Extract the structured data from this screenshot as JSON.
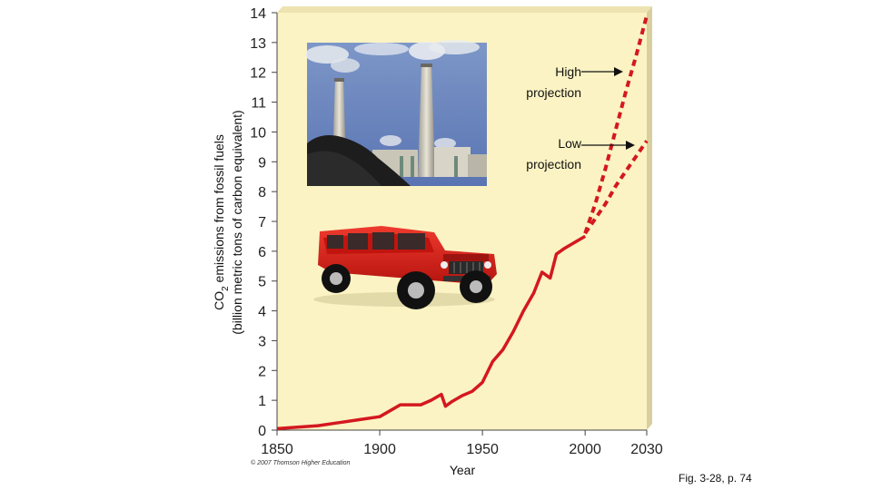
{
  "chart_data": {
    "type": "line",
    "ylabel_line1_prefix": "CO",
    "ylabel_line1_sub": "2",
    "ylabel_line1_suffix": " emissions from fossil fuels",
    "ylabel_line2": "(billion metric tons of carbon equivalent)",
    "xlabel": "Year",
    "xlim": [
      1850,
      2030
    ],
    "ylim": [
      0,
      14
    ],
    "x_ticks": [
      1850,
      1900,
      1950,
      2000,
      2030
    ],
    "y_ticks": [
      0,
      1,
      2,
      3,
      4,
      5,
      6,
      7,
      8,
      9,
      10,
      11,
      12,
      13,
      14
    ],
    "series": [
      {
        "kind": "observed",
        "style": "solid",
        "x": [
          1850,
          1860,
          1870,
          1880,
          1890,
          1900,
          1910,
          1920,
          1925,
          1930,
          1932,
          1935,
          1940,
          1945,
          1950,
          1955,
          1960,
          1965,
          1970,
          1975,
          1979,
          1983,
          1986,
          1990,
          1995,
          2000
        ],
        "y": [
          0.05,
          0.1,
          0.15,
          0.25,
          0.35,
          0.45,
          0.85,
          0.85,
          1.0,
          1.2,
          0.8,
          0.95,
          1.15,
          1.3,
          1.6,
          2.3,
          2.7,
          3.3,
          4.0,
          4.6,
          5.3,
          5.1,
          5.9,
          6.1,
          6.3,
          6.5
        ]
      },
      {
        "kind": "high",
        "style": "dashed",
        "x": [
          2000,
          2005,
          2010,
          2015,
          2020,
          2025,
          2030
        ],
        "y": [
          6.6,
          7.6,
          8.8,
          10.1,
          11.4,
          12.6,
          13.9
        ]
      },
      {
        "kind": "low",
        "style": "dashed",
        "x": [
          2000,
          2005,
          2010,
          2015,
          2020,
          2025,
          2030
        ],
        "y": [
          6.6,
          7.1,
          7.6,
          8.2,
          8.7,
          9.2,
          9.7
        ]
      }
    ],
    "annotations": [
      {
        "line1": "High",
        "line2": "projection"
      },
      {
        "line1": "Low",
        "line2": "projection"
      }
    ],
    "plot_background": "#fbf3c3",
    "line_color": "#d41820",
    "grid": false
  },
  "credit": "© 2007 Thomson Higher Education",
  "figure_ref": "Fig. 3-28, p. 74",
  "photos": {
    "power_plant": "power-plant-smokestacks-photo",
    "suv": "red-suv-photo"
  }
}
